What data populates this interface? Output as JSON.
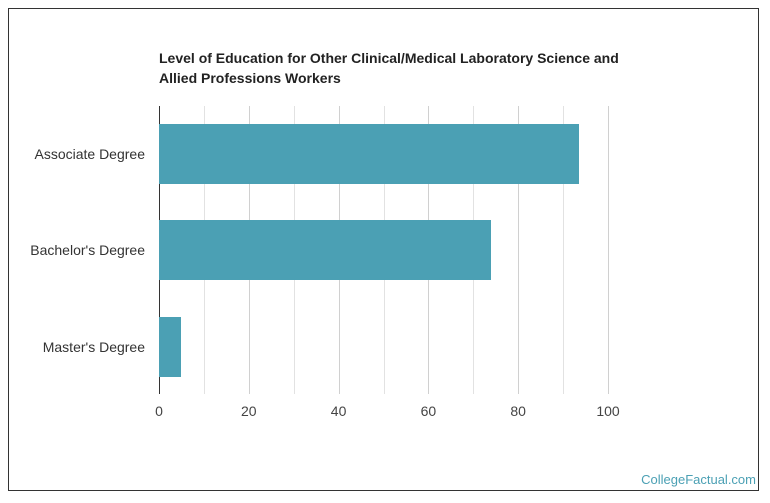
{
  "chart_data": {
    "type": "bar",
    "orientation": "horizontal",
    "title": "Level of Education for Other Clinical/Medical Laboratory Science and Allied Professions Workers",
    "categories": [
      "Associate Degree",
      "Bachelor's Degree",
      "Master's Degree"
    ],
    "values": [
      93.5,
      74,
      5
    ],
    "xlabel": "",
    "ylabel": "",
    "xlim": [
      0,
      100
    ],
    "xticks": [
      "0",
      "20",
      "40",
      "60",
      "80",
      "100"
    ],
    "grid": true,
    "legend": null,
    "bar_color": "#4ba0b4"
  },
  "title_line1": "Level of Education for Other Clinical/Medical Laboratory Science and",
  "title_line2": "Allied Professions Workers",
  "credit": "CollegeFactual.com"
}
